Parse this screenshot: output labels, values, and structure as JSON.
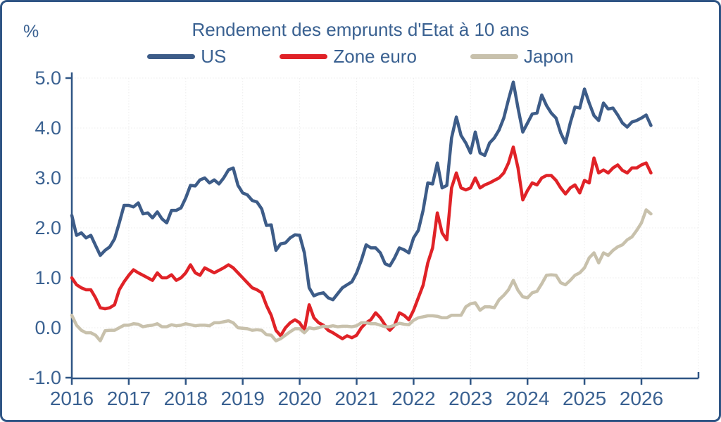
{
  "colors": {
    "text": "#3A6191",
    "axis": "#2F5584",
    "grid": "#ECECEC",
    "frame_border": "#2F5585",
    "background": "#FFFFFF"
  },
  "card": {
    "unit_label": "%"
  },
  "chart_data": {
    "type": "line",
    "title": "Rendement des emprunts d'Etat à 10 ans",
    "ylabel": "%",
    "xlabel": "",
    "grid": true,
    "legend_position": "top",
    "x_start_year": 2016,
    "points_per_year": 12,
    "x_ticks": [
      2016,
      2017,
      2018,
      2019,
      2020,
      2021,
      2022,
      2023,
      2024,
      2025,
      2026
    ],
    "y_ticks": [
      -1.0,
      0.0,
      1.0,
      2.0,
      3.0,
      4.0,
      5.0
    ],
    "ylim": [
      -1.0,
      5.0
    ],
    "xlim": [
      2016,
      2027
    ],
    "series": [
      {
        "name": "US",
        "color": "#3D5C88",
        "values": [
          2.25,
          1.85,
          1.9,
          1.8,
          1.85,
          1.65,
          1.45,
          1.55,
          1.62,
          1.78,
          2.1,
          2.45,
          2.45,
          2.42,
          2.5,
          2.28,
          2.3,
          2.2,
          2.32,
          2.18,
          2.1,
          2.35,
          2.35,
          2.4,
          2.6,
          2.85,
          2.84,
          2.96,
          3.0,
          2.9,
          2.96,
          2.88,
          3.0,
          3.16,
          3.2,
          2.85,
          2.7,
          2.66,
          2.55,
          2.52,
          2.38,
          2.05,
          2.06,
          1.55,
          1.68,
          1.7,
          1.8,
          1.86,
          1.85,
          1.5,
          0.8,
          0.64,
          0.68,
          0.7,
          0.6,
          0.56,
          0.68,
          0.8,
          0.86,
          0.92,
          1.1,
          1.35,
          1.66,
          1.6,
          1.6,
          1.5,
          1.28,
          1.24,
          1.4,
          1.6,
          1.56,
          1.5,
          1.8,
          1.95,
          2.35,
          2.9,
          2.88,
          3.3,
          2.8,
          2.85,
          3.8,
          4.22,
          3.85,
          3.7,
          3.5,
          3.92,
          3.5,
          3.45,
          3.7,
          3.8,
          3.96,
          4.2,
          4.57,
          4.92,
          4.4,
          3.92,
          4.1,
          4.28,
          4.3,
          4.66,
          4.45,
          4.3,
          4.2,
          3.9,
          3.7,
          4.1,
          4.42,
          4.4,
          4.78,
          4.5,
          4.25,
          4.15,
          4.5,
          4.38,
          4.4,
          4.26,
          4.1,
          4.02,
          4.12,
          4.15,
          4.2,
          4.26,
          4.05
        ]
      },
      {
        "name": "Zone euro",
        "color": "#E02227",
        "values": [
          1.0,
          0.86,
          0.8,
          0.76,
          0.76,
          0.6,
          0.4,
          0.38,
          0.4,
          0.46,
          0.76,
          0.92,
          1.05,
          1.16,
          1.1,
          1.05,
          1.0,
          0.95,
          1.1,
          1.0,
          1.0,
          1.06,
          0.95,
          1.0,
          1.1,
          1.26,
          1.1,
          1.05,
          1.2,
          1.15,
          1.1,
          1.15,
          1.2,
          1.26,
          1.2,
          1.1,
          1.0,
          0.9,
          0.8,
          0.76,
          0.7,
          0.45,
          0.25,
          -0.05,
          -0.16,
          0.0,
          0.1,
          0.16,
          0.1,
          -0.05,
          0.46,
          0.2,
          0.1,
          0.05,
          -0.05,
          -0.1,
          -0.16,
          -0.22,
          -0.16,
          -0.2,
          -0.15,
          0.0,
          0.1,
          0.16,
          0.3,
          0.2,
          0.05,
          -0.05,
          0.05,
          0.3,
          0.25,
          0.16,
          0.35,
          0.6,
          0.85,
          1.3,
          1.6,
          2.3,
          1.9,
          1.76,
          2.8,
          3.1,
          2.8,
          2.76,
          2.8,
          3.0,
          2.8,
          2.86,
          2.9,
          2.95,
          3.0,
          3.1,
          3.3,
          3.62,
          3.2,
          2.56,
          2.75,
          2.9,
          2.86,
          3.0,
          3.05,
          3.05,
          2.95,
          2.8,
          2.68,
          2.8,
          2.86,
          2.7,
          2.95,
          2.9,
          3.4,
          3.1,
          3.16,
          3.1,
          3.2,
          3.26,
          3.15,
          3.1,
          3.2,
          3.2,
          3.26,
          3.3,
          3.1
        ]
      },
      {
        "name": "Japon",
        "color": "#C8C1AC",
        "values": [
          0.25,
          0.05,
          -0.05,
          -0.1,
          -0.1,
          -0.15,
          -0.26,
          -0.06,
          -0.05,
          -0.05,
          0.0,
          0.05,
          0.05,
          0.08,
          0.07,
          0.02,
          0.04,
          0.05,
          0.08,
          0.02,
          0.02,
          0.06,
          0.04,
          0.05,
          0.08,
          0.06,
          0.04,
          0.05,
          0.05,
          0.04,
          0.1,
          0.1,
          0.12,
          0.14,
          0.1,
          0.0,
          -0.01,
          -0.02,
          -0.05,
          -0.04,
          -0.05,
          -0.14,
          -0.15,
          -0.26,
          -0.22,
          -0.15,
          -0.08,
          -0.02,
          -0.02,
          -0.1,
          0.0,
          -0.02,
          0.0,
          0.03,
          0.02,
          0.04,
          0.02,
          0.03,
          0.03,
          0.02,
          0.04,
          0.1,
          0.1,
          0.08,
          0.08,
          0.05,
          0.02,
          0.02,
          0.05,
          0.09,
          0.07,
          0.06,
          0.15,
          0.2,
          0.22,
          0.24,
          0.24,
          0.23,
          0.2,
          0.2,
          0.25,
          0.25,
          0.25,
          0.42,
          0.48,
          0.5,
          0.35,
          0.42,
          0.42,
          0.4,
          0.56,
          0.65,
          0.76,
          0.95,
          0.75,
          0.62,
          0.6,
          0.7,
          0.73,
          0.88,
          1.05,
          1.06,
          1.05,
          0.9,
          0.86,
          0.95,
          1.05,
          1.1,
          1.2,
          1.4,
          1.5,
          1.3,
          1.5,
          1.45,
          1.55,
          1.62,
          1.66,
          1.76,
          1.82,
          1.95,
          2.1,
          2.36,
          2.28
        ]
      }
    ]
  }
}
